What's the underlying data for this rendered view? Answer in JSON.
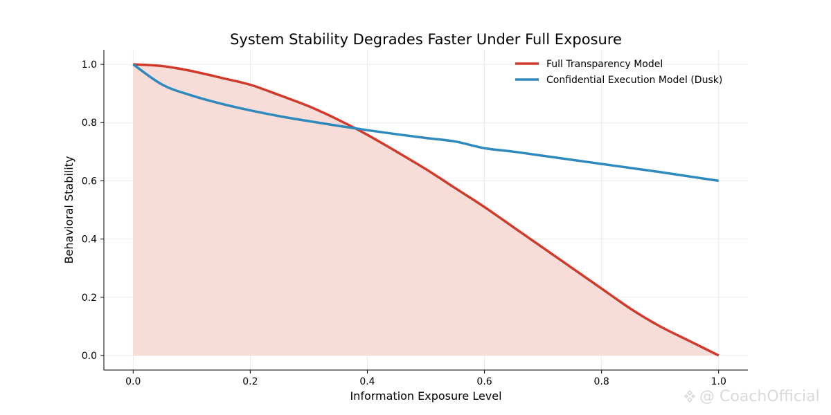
{
  "chart_data": {
    "type": "line",
    "title": "System Stability Degrades Faster Under Full Exposure",
    "xlabel": "Information Exposure Level",
    "ylabel": "Behavioral Stability",
    "xlim": [
      -0.05,
      1.05
    ],
    "ylim": [
      -0.05,
      1.05
    ],
    "xticks": [
      0.0,
      0.2,
      0.4,
      0.6,
      0.8,
      1.0
    ],
    "yticks": [
      0.0,
      0.2,
      0.4,
      0.6,
      0.8,
      1.0
    ],
    "xtick_labels": [
      "0.0",
      "0.2",
      "0.4",
      "0.6",
      "0.8",
      "1.0"
    ],
    "ytick_labels": [
      "0.0",
      "0.2",
      "0.4",
      "0.6",
      "0.8",
      "1.0"
    ],
    "grid": true,
    "legend_position": "top-right",
    "x": [
      0.0,
      0.05,
      0.1,
      0.15,
      0.2,
      0.25,
      0.3,
      0.35,
      0.4,
      0.45,
      0.5,
      0.55,
      0.6,
      0.65,
      0.7,
      0.75,
      0.8,
      0.85,
      0.9,
      0.95,
      1.0
    ],
    "series": [
      {
        "name": "Full Transparency Model",
        "color": "#d13a2a",
        "fill_under": true,
        "fill_color": "#f8dcd8",
        "values": [
          1.0,
          0.994,
          0.977,
          0.954,
          0.93,
          0.894,
          0.856,
          0.81,
          0.758,
          0.7,
          0.64,
          0.575,
          0.51,
          0.44,
          0.37,
          0.3,
          0.23,
          0.16,
          0.1,
          0.05,
          0.0
        ]
      },
      {
        "name": "Confidential Execution Model (Dusk)",
        "color": "#2e89bd",
        "fill_under": false,
        "values": [
          1.0,
          0.93,
          0.893,
          0.865,
          0.842,
          0.822,
          0.805,
          0.789,
          0.774,
          0.76,
          0.747,
          0.735,
          0.712,
          0.7,
          0.686,
          0.672,
          0.658,
          0.644,
          0.63,
          0.615,
          0.6
        ]
      }
    ]
  },
  "watermark": {
    "text": "@ CoachOfficial"
  }
}
